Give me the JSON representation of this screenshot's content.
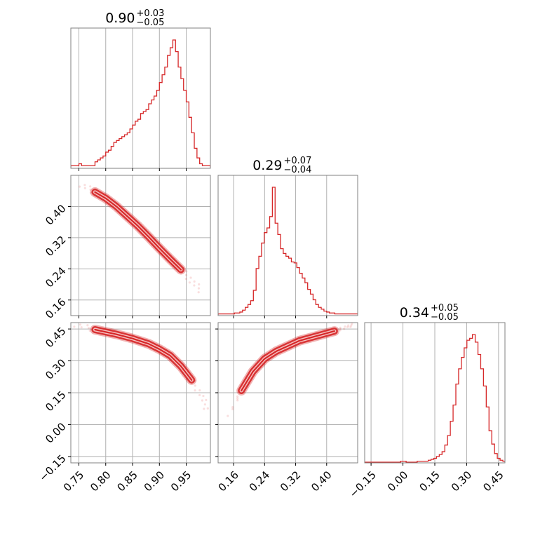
{
  "colors": {
    "series": "#d62728",
    "grid": "#b0b0b0",
    "frame": "#808080"
  },
  "chart_data": {
    "type": "corner",
    "grid": true,
    "parameters": [
      {
        "range": [
          0.735,
          0.995
        ],
        "ticks": [
          0.75,
          0.8,
          0.85,
          0.9,
          0.95
        ],
        "tick_labels": [
          "0.75",
          "0.80",
          "0.85",
          "0.90",
          "0.95"
        ],
        "title": {
          "value": "0.90",
          "upper": "+0.03",
          "lower": "−0.05"
        }
      },
      {
        "range": [
          0.12,
          0.48
        ],
        "ticks": [
          0.16,
          0.24,
          0.32,
          0.4
        ],
        "tick_labels": [
          "0.16",
          "0.24",
          "0.32",
          "0.40"
        ],
        "title": {
          "value": "0.29",
          "upper": "+0.07",
          "lower": "−0.04"
        }
      },
      {
        "range": [
          -0.18,
          0.48
        ],
        "ticks": [
          -0.15,
          0.0,
          0.15,
          0.3,
          0.45
        ],
        "tick_labels": [
          "−0.15",
          "0.00",
          "0.15",
          "0.30",
          "0.45"
        ],
        "title": {
          "value": "0.34",
          "upper": "+0.05",
          "lower": "−0.05"
        }
      }
    ],
    "histograms": [
      {
        "param": 0,
        "edges": [
          0.735,
          0.74,
          0.745,
          0.75,
          0.755,
          0.76,
          0.765,
          0.77,
          0.775,
          0.78,
          0.785,
          0.79,
          0.795,
          0.8,
          0.805,
          0.81,
          0.815,
          0.82,
          0.825,
          0.83,
          0.835,
          0.84,
          0.845,
          0.85,
          0.855,
          0.86,
          0.865,
          0.87,
          0.875,
          0.88,
          0.885,
          0.89,
          0.895,
          0.9,
          0.905,
          0.91,
          0.915,
          0.92,
          0.925,
          0.93,
          0.935,
          0.94,
          0.945,
          0.95,
          0.955,
          0.96,
          0.965,
          0.97,
          0.975,
          0.98,
          0.985,
          0.99,
          0.995
        ],
        "counts": [
          1,
          1,
          1,
          2,
          1,
          1,
          1,
          1,
          1,
          3,
          4,
          5,
          6,
          8,
          9,
          11,
          13,
          14,
          15,
          16,
          17,
          18,
          20,
          22,
          24,
          25,
          28,
          29,
          30,
          33,
          35,
          37,
          40,
          44,
          48,
          52,
          58,
          62,
          66,
          60,
          52,
          46,
          40,
          34,
          26,
          18,
          10,
          5,
          2,
          1,
          1,
          1
        ]
      },
      {
        "param": 1,
        "edges": [
          0.12,
          0.127,
          0.134,
          0.141,
          0.148,
          0.155,
          0.162,
          0.169,
          0.176,
          0.183,
          0.19,
          0.197,
          0.204,
          0.211,
          0.218,
          0.225,
          0.232,
          0.239,
          0.246,
          0.253,
          0.26,
          0.267,
          0.274,
          0.281,
          0.288,
          0.295,
          0.302,
          0.309,
          0.316,
          0.323,
          0.33,
          0.337,
          0.344,
          0.351,
          0.358,
          0.365,
          0.372,
          0.379,
          0.386,
          0.393,
          0.4,
          0.407,
          0.414,
          0.421,
          0.428,
          0.435,
          0.442,
          0.449,
          0.456,
          0.463,
          0.47,
          0.477,
          0.484
        ],
        "counts": [
          1,
          1,
          1,
          1,
          1,
          1,
          2,
          2,
          3,
          5,
          8,
          11,
          15,
          26,
          49,
          62,
          76,
          87,
          92,
          104,
          135,
          97,
          85,
          70,
          65,
          62,
          60,
          56,
          55,
          50,
          44,
          39,
          34,
          27,
          22,
          16,
          11,
          8,
          6,
          4,
          3,
          2,
          2,
          1,
          1,
          1,
          1,
          1,
          1,
          1,
          1,
          1
        ]
      },
      {
        "param": 2,
        "edges": [
          -0.18,
          -0.167,
          -0.154,
          -0.141,
          -0.128,
          -0.115,
          -0.102,
          -0.089,
          -0.076,
          -0.063,
          -0.05,
          -0.037,
          -0.024,
          -0.011,
          0.002,
          0.015,
          0.028,
          0.041,
          0.054,
          0.067,
          0.08,
          0.093,
          0.106,
          0.119,
          0.132,
          0.145,
          0.158,
          0.171,
          0.184,
          0.197,
          0.21,
          0.223,
          0.236,
          0.249,
          0.262,
          0.275,
          0.288,
          0.301,
          0.314,
          0.327,
          0.34,
          0.353,
          0.366,
          0.379,
          0.392,
          0.405,
          0.418,
          0.431,
          0.444,
          0.457,
          0.47,
          0.483
        ],
        "counts": [
          0,
          0,
          0,
          0,
          0,
          0,
          0,
          0,
          0,
          0,
          0,
          0,
          0,
          1,
          1,
          0,
          0,
          0,
          0,
          1,
          1,
          1,
          1,
          2,
          3,
          4,
          6,
          8,
          11,
          18,
          28,
          43,
          60,
          82,
          98,
          110,
          120,
          128,
          130,
          134,
          126,
          113,
          98,
          80,
          58,
          33,
          19,
          9,
          4,
          2,
          1
        ]
      }
    ],
    "pairs": [
      {
        "x_param": 0,
        "y_param": 1,
        "ridge": [
          [
            0.755,
            0.456
          ],
          [
            0.78,
            0.437
          ],
          [
            0.8,
            0.421
          ],
          [
            0.82,
            0.4
          ],
          [
            0.84,
            0.375
          ],
          [
            0.86,
            0.35
          ],
          [
            0.88,
            0.322
          ],
          [
            0.9,
            0.293
          ],
          [
            0.92,
            0.265
          ],
          [
            0.94,
            0.238
          ],
          [
            0.96,
            0.21
          ],
          [
            0.98,
            0.18
          ]
        ],
        "width": 0.016
      },
      {
        "x_param": 0,
        "y_param": 2,
        "ridge": [
          [
            0.745,
            0.47
          ],
          [
            0.78,
            0.447
          ],
          [
            0.82,
            0.425
          ],
          [
            0.85,
            0.405
          ],
          [
            0.88,
            0.38
          ],
          [
            0.9,
            0.355
          ],
          [
            0.92,
            0.325
          ],
          [
            0.94,
            0.275
          ],
          [
            0.96,
            0.21
          ],
          [
            0.98,
            0.13
          ],
          [
            0.99,
            0.06
          ]
        ],
        "width": 0.03
      },
      {
        "x_param": 1,
        "y_param": 2,
        "ridge": [
          [
            0.15,
            0.05
          ],
          [
            0.18,
            0.16
          ],
          [
            0.21,
            0.25
          ],
          [
            0.24,
            0.31
          ],
          [
            0.27,
            0.345
          ],
          [
            0.3,
            0.37
          ],
          [
            0.33,
            0.395
          ],
          [
            0.36,
            0.41
          ],
          [
            0.39,
            0.425
          ],
          [
            0.42,
            0.44
          ],
          [
            0.45,
            0.46
          ],
          [
            0.47,
            0.47
          ]
        ],
        "width": 0.03
      }
    ]
  }
}
